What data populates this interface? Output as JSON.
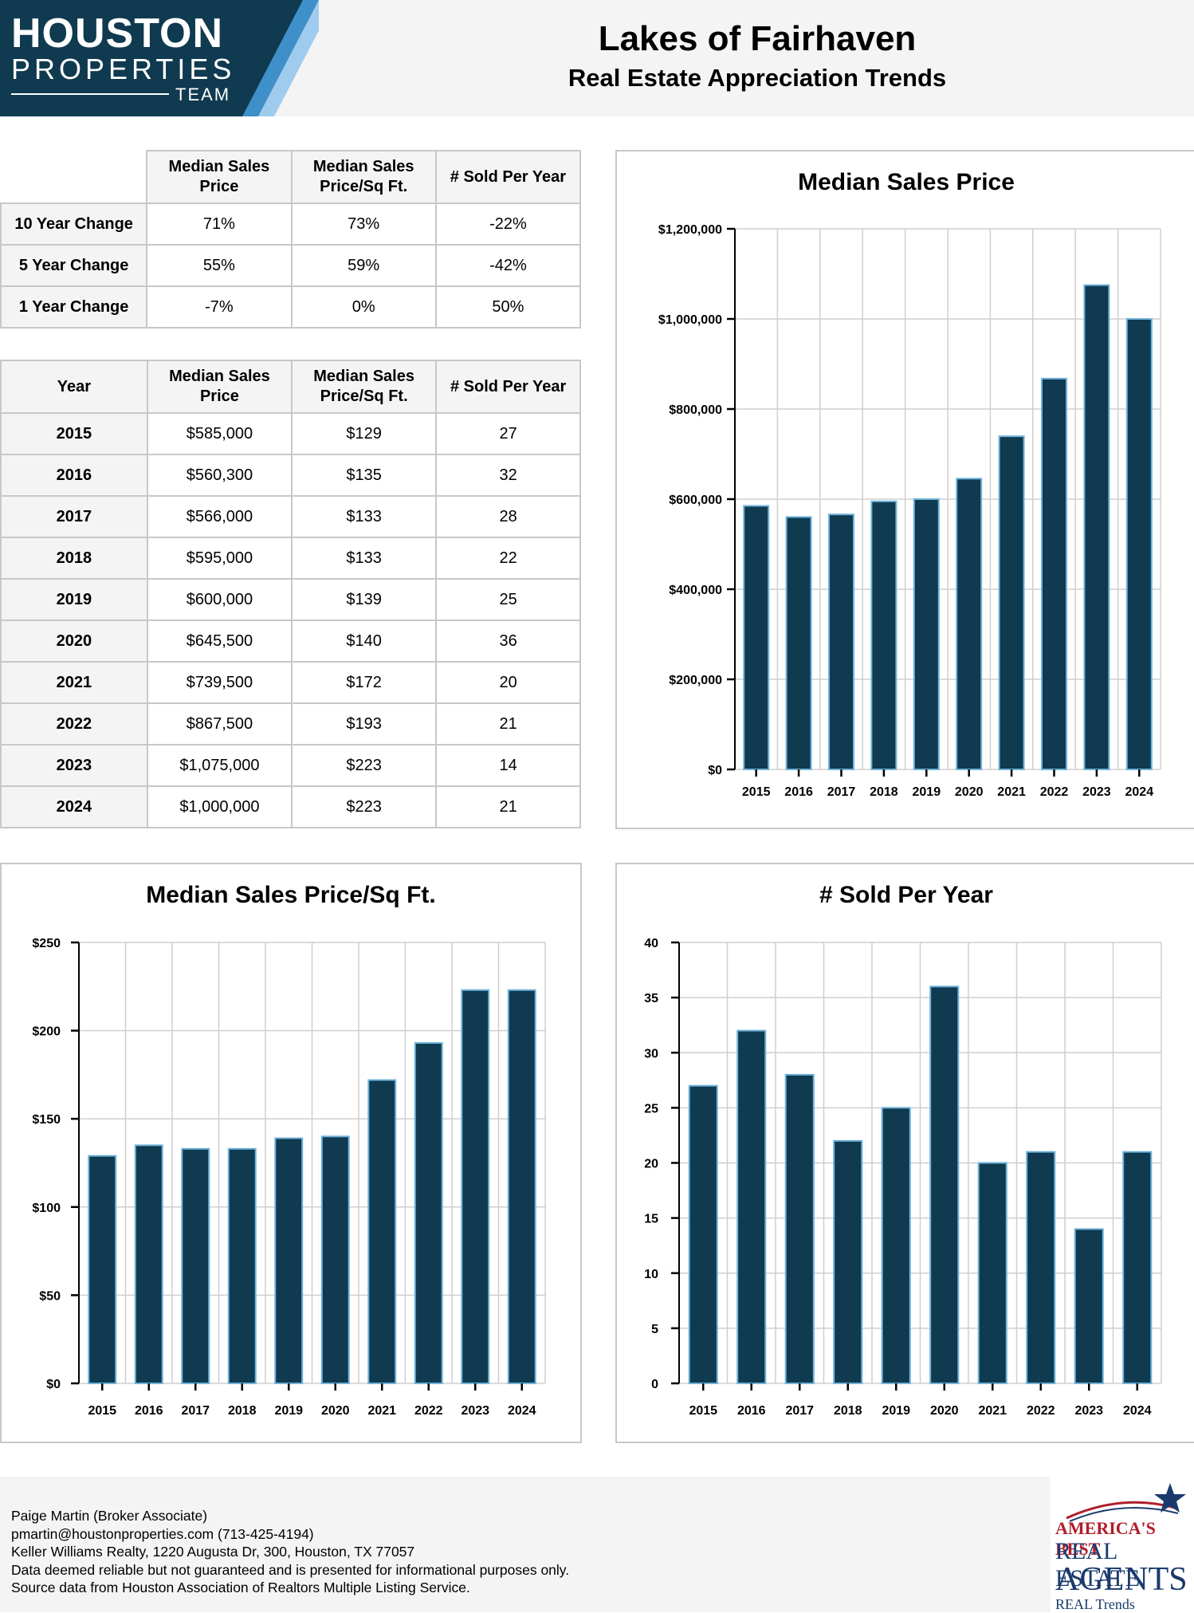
{
  "header": {
    "logo_line1": "HOUSTON",
    "logo_line2": "PROPERTIES",
    "logo_line3": "TEAM",
    "title": "Lakes of Fairhaven",
    "subtitle": "Real Estate Appreciation Trends"
  },
  "change_table": {
    "columns": [
      "Median Sales Price",
      "Median Sales Price/Sq Ft.",
      "# Sold Per Year"
    ],
    "rows": [
      {
        "label": "10 Year Change",
        "values": [
          "71%",
          "73%",
          "-22%"
        ]
      },
      {
        "label": "5 Year Change",
        "values": [
          "55%",
          "59%",
          "-42%"
        ]
      },
      {
        "label": "1 Year Change",
        "values": [
          "-7%",
          "0%",
          "50%"
        ]
      }
    ]
  },
  "yearly_table": {
    "columns": [
      "Year",
      "Median Sales Price",
      "Median Sales Price/Sq Ft.",
      "# Sold Per Year"
    ],
    "rows": [
      [
        "2015",
        "$585,000",
        "$129",
        "27"
      ],
      [
        "2016",
        "$560,300",
        "$135",
        "32"
      ],
      [
        "2017",
        "$566,000",
        "$133",
        "28"
      ],
      [
        "2018",
        "$595,000",
        "$133",
        "22"
      ],
      [
        "2019",
        "$600,000",
        "$139",
        "25"
      ],
      [
        "2020",
        "$645,500",
        "$140",
        "36"
      ],
      [
        "2021",
        "$739,500",
        "$172",
        "20"
      ],
      [
        "2022",
        "$867,500",
        "$193",
        "21"
      ],
      [
        "2023",
        "$1,075,000",
        "$223",
        "14"
      ],
      [
        "2024",
        "$1,000,000",
        "$223",
        "21"
      ]
    ]
  },
  "chart_data": [
    {
      "type": "bar",
      "title": "Median Sales Price",
      "categories": [
        "2015",
        "2016",
        "2017",
        "2018",
        "2019",
        "2020",
        "2021",
        "2022",
        "2023",
        "2024"
      ],
      "values": [
        585000,
        560300,
        566000,
        595000,
        600000,
        645500,
        739500,
        867500,
        1075000,
        1000000
      ],
      "ylim": [
        0,
        1200000
      ],
      "yticks": [
        0,
        200000,
        400000,
        600000,
        800000,
        1000000,
        1200000
      ],
      "ytick_labels": [
        "$0",
        "$200,000",
        "$400,000",
        "$600,000",
        "$800,000",
        "$1,000,000",
        "$1,200,000"
      ],
      "grid": true,
      "bar_color": "#0f3a50",
      "bar_edge": "#6fb3d9"
    },
    {
      "type": "bar",
      "title": "Median Sales Price/Sq Ft.",
      "categories": [
        "2015",
        "2016",
        "2017",
        "2018",
        "2019",
        "2020",
        "2021",
        "2022",
        "2023",
        "2024"
      ],
      "values": [
        129,
        135,
        133,
        133,
        139,
        140,
        172,
        193,
        223,
        223
      ],
      "ylim": [
        0,
        250
      ],
      "yticks": [
        0,
        50,
        100,
        150,
        200,
        250
      ],
      "ytick_labels": [
        "$0",
        "$50",
        "$100",
        "$150",
        "$200",
        "$250"
      ],
      "grid": true,
      "bar_color": "#0f3a50",
      "bar_edge": "#6fb3d9"
    },
    {
      "type": "bar",
      "title": "# Sold Per Year",
      "categories": [
        "2015",
        "2016",
        "2017",
        "2018",
        "2019",
        "2020",
        "2021",
        "2022",
        "2023",
        "2024"
      ],
      "values": [
        27,
        32,
        28,
        22,
        25,
        36,
        20,
        21,
        14,
        21
      ],
      "ylim": [
        0,
        40
      ],
      "yticks": [
        0,
        5,
        10,
        15,
        20,
        25,
        30,
        35,
        40
      ],
      "ytick_labels": [
        "0",
        "5",
        "10",
        "15",
        "20",
        "25",
        "30",
        "35",
        "40"
      ],
      "grid": true,
      "bar_color": "#0f3a50",
      "bar_edge": "#6fb3d9"
    }
  ],
  "footer": {
    "lines": [
      "Paige Martin (Broker Associate)",
      "pmartin@houstonproperties.com (713-425-4194)",
      "Keller Williams Realty, 1220 Augusta Dr, 300, Houston, TX 77057",
      "Data deemed reliable but not guaranteed and is presented for informational purposes only.",
      "Source data from Houston Association of Realtors Multiple Listing Service."
    ],
    "badge": {
      "line1": "AMERICA'S BEST",
      "line2": "REAL ESTATE",
      "line3": "AGENTS",
      "line4": "REAL Trends"
    }
  },
  "colors": {
    "logo_bg": "#0f3a50",
    "logo_stripe_1": "#3f8fc9",
    "logo_stripe_2": "#9fcbee",
    "bar_fill": "#0f3a50",
    "bar_edge": "#6fb3d9",
    "grid": "#cfcfcf",
    "header_bg": "#f4f4f4"
  }
}
